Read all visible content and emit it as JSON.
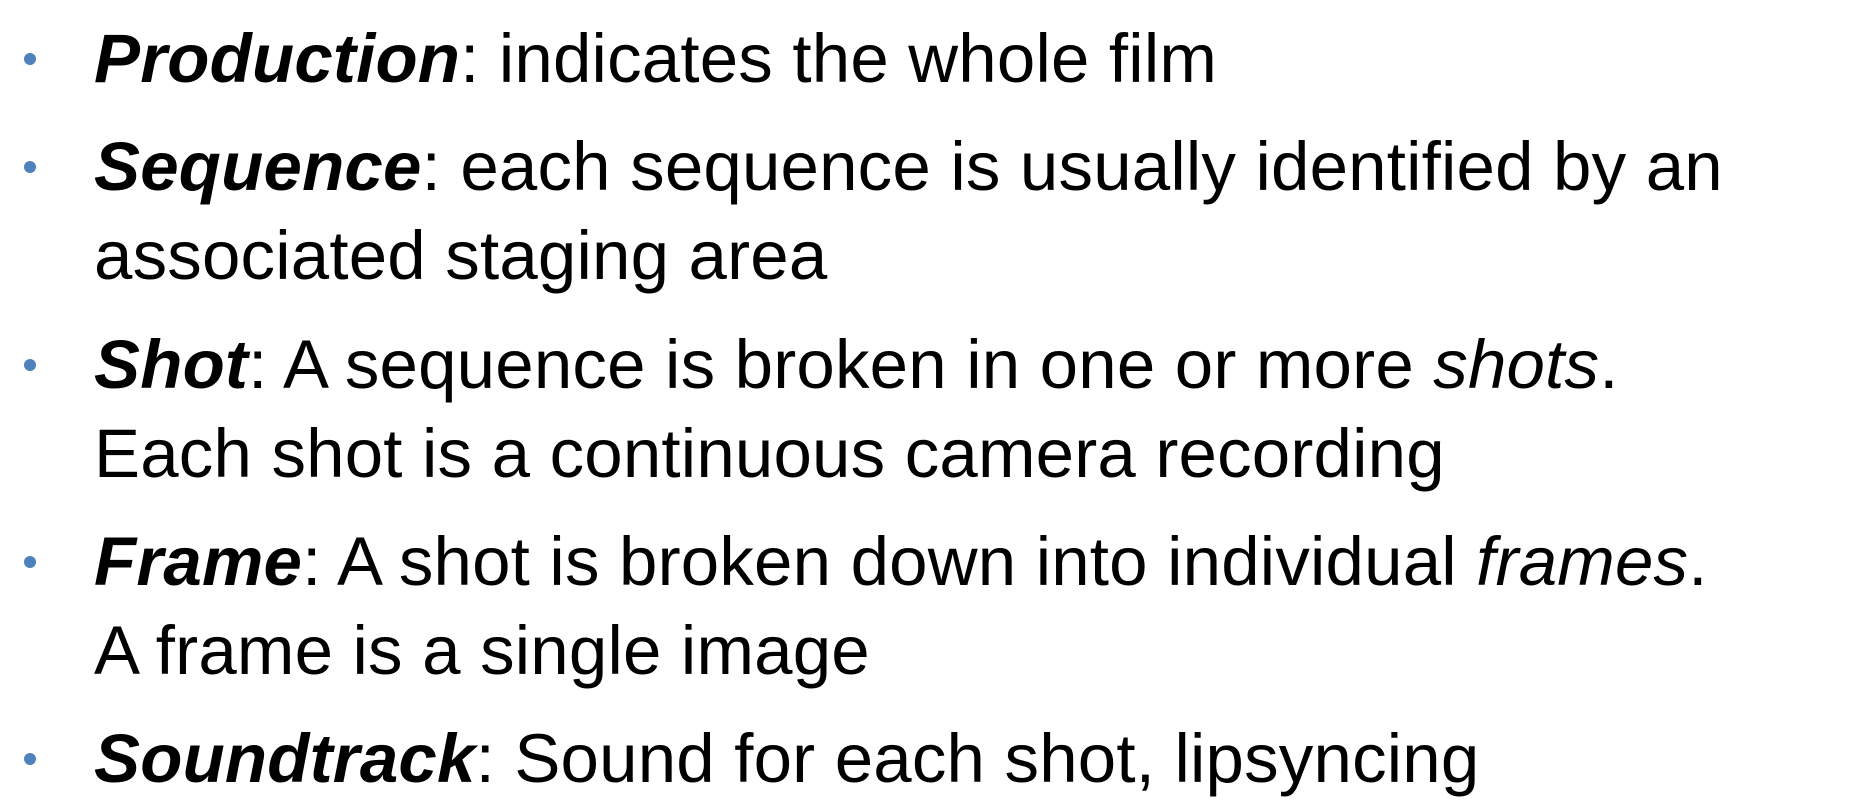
{
  "bullets": [
    {
      "term": "Production",
      "line1_pre": ": indicates the whole film",
      "line1_em": "",
      "line1_post": "",
      "line2": ""
    },
    {
      "term": "Sequence",
      "line1_pre": ": each sequence is usually identified by an",
      "line1_em": "",
      "line1_post": "",
      "line2": "associated staging area"
    },
    {
      "term": "Shot",
      "line1_pre": ": A sequence is broken in one or more ",
      "line1_em": "shots",
      "line1_post": ".",
      "line2": "Each shot is a continuous camera recording"
    },
    {
      "term": "Frame",
      "line1_pre": ": A shot is broken down into individual ",
      "line1_em": "frames",
      "line1_post": ".",
      "line2": "A frame is a single image"
    },
    {
      "term": "Soundtrack",
      "line1_pre": ": Sound for each shot, lipsyncing",
      "line1_em": "",
      "line1_post": "",
      "line2": ""
    }
  ],
  "colors": {
    "bullet": "#4f81bd",
    "text": "#000000",
    "background": "#ffffff"
  }
}
